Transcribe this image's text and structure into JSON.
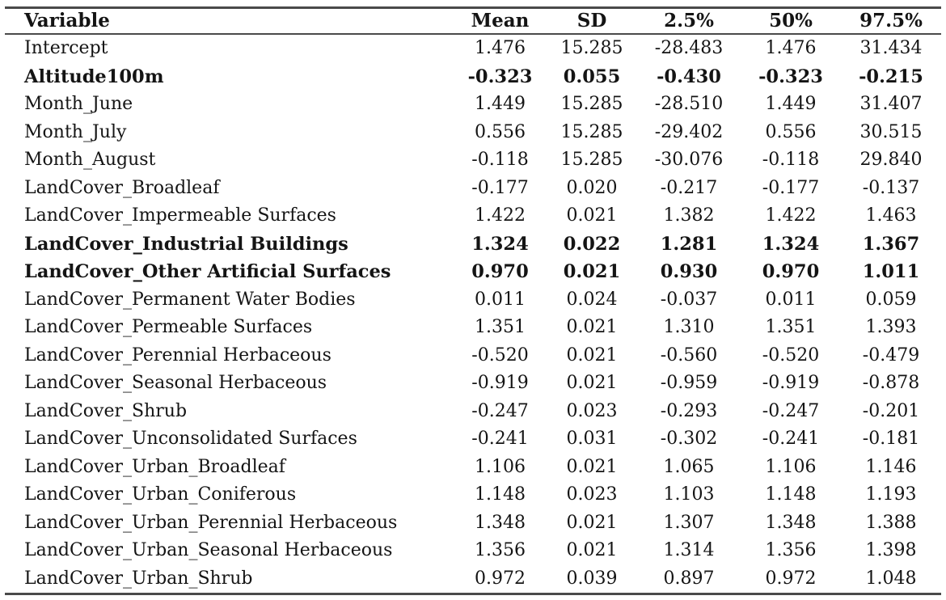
{
  "table": {
    "columns": [
      "Variable",
      "Mean",
      "SD",
      "2.5%",
      "50%",
      "97.5%"
    ],
    "rows": [
      {
        "variable": "Intercept",
        "bold": false,
        "values": [
          "1.476",
          "15.285",
          "-28.483",
          "1.476",
          "31.434"
        ]
      },
      {
        "variable": "Altitude100m",
        "bold": true,
        "values": [
          "-0.323",
          "0.055",
          "-0.430",
          "-0.323",
          "-0.215"
        ]
      },
      {
        "variable": "Month_June",
        "bold": false,
        "values": [
          "1.449",
          "15.285",
          "-28.510",
          "1.449",
          "31.407"
        ]
      },
      {
        "variable": "Month_July",
        "bold": false,
        "values": [
          "0.556",
          "15.285",
          "-29.402",
          "0.556",
          "30.515"
        ]
      },
      {
        "variable": "Month_August",
        "bold": false,
        "values": [
          "-0.118",
          "15.285",
          "-30.076",
          "-0.118",
          "29.840"
        ]
      },
      {
        "variable": "LandCover_Broadleaf",
        "bold": false,
        "values": [
          "-0.177",
          "0.020",
          "-0.217",
          "-0.177",
          "-0.137"
        ]
      },
      {
        "variable": "LandCover_Impermeable Surfaces",
        "bold": false,
        "values": [
          "1.422",
          "0.021",
          "1.382",
          "1.422",
          "1.463"
        ]
      },
      {
        "variable": "LandCover_Industrial Buildings",
        "bold": true,
        "values": [
          "1.324",
          "0.022",
          "1.281",
          "1.324",
          "1.367"
        ]
      },
      {
        "variable": "LandCover_Other Artificial Surfaces",
        "bold": true,
        "values": [
          "0.970",
          "0.021",
          "0.930",
          "0.970",
          "1.011"
        ]
      },
      {
        "variable": "LandCover_Permanent Water Bodies",
        "bold": false,
        "values": [
          "0.011",
          "0.024",
          "-0.037",
          "0.011",
          "0.059"
        ]
      },
      {
        "variable": "LandCover_Permeable Surfaces",
        "bold": false,
        "values": [
          "1.351",
          "0.021",
          "1.310",
          "1.351",
          "1.393"
        ]
      },
      {
        "variable": "LandCover_Perennial Herbaceous",
        "bold": false,
        "values": [
          "-0.520",
          "0.021",
          "-0.560",
          "-0.520",
          "-0.479"
        ]
      },
      {
        "variable": "LandCover_Seasonal Herbaceous",
        "bold": false,
        "values": [
          "-0.919",
          "0.021",
          "-0.959",
          "-0.919",
          "-0.878"
        ]
      },
      {
        "variable": "LandCover_Shrub",
        "bold": false,
        "values": [
          "-0.247",
          "0.023",
          "-0.293",
          "-0.247",
          "-0.201"
        ]
      },
      {
        "variable": "LandCover_Unconsolidated Surfaces",
        "bold": false,
        "values": [
          "-0.241",
          "0.031",
          "-0.302",
          "-0.241",
          "-0.181"
        ]
      },
      {
        "variable": "LandCover_Urban_Broadleaf",
        "bold": false,
        "values": [
          "1.106",
          "0.021",
          "1.065",
          "1.106",
          "1.146"
        ]
      },
      {
        "variable": "LandCover_Urban_Coniferous",
        "bold": false,
        "values": [
          "1.148",
          "0.023",
          "1.103",
          "1.148",
          "1.193"
        ]
      },
      {
        "variable": "LandCover_Urban_Perennial Herbaceous",
        "bold": false,
        "values": [
          "1.348",
          "0.021",
          "1.307",
          "1.348",
          "1.388"
        ]
      },
      {
        "variable": "LandCover_Urban_Seasonal Herbaceous",
        "bold": false,
        "values": [
          "1.356",
          "0.021",
          "1.314",
          "1.356",
          "1.398"
        ]
      },
      {
        "variable": "LandCover_Urban_Shrub",
        "bold": false,
        "values": [
          "0.972",
          "0.039",
          "0.897",
          "0.972",
          "1.048"
        ]
      }
    ]
  },
  "colors": {
    "background": "#ffffff",
    "text": "#141414",
    "rule": "#4a4a4a"
  }
}
